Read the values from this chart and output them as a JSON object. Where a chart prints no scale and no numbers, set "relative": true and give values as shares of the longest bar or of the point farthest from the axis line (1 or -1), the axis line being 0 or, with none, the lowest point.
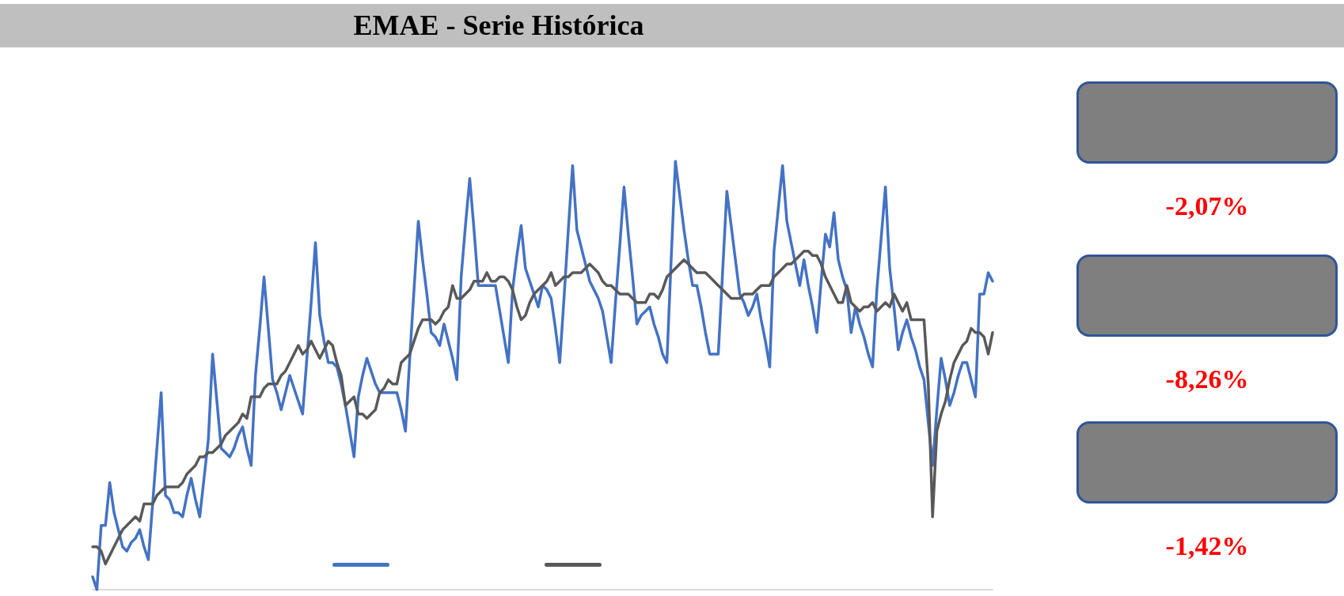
{
  "chart_data": {
    "type": "line",
    "title": "EMAE - Serie Histórica",
    "relative": true,
    "grid": false,
    "marker": "none",
    "annotations": [
      "-2,07%",
      "-8,26%",
      "-1,42%"
    ],
    "categories": [
      null,
      null,
      null,
      null,
      null,
      null,
      null,
      null,
      null,
      null,
      null,
      null,
      null,
      null,
      null,
      null,
      null,
      null,
      null,
      null,
      null,
      null,
      null,
      null,
      null,
      null,
      null,
      null,
      null,
      null,
      null,
      null,
      null,
      null,
      null,
      null,
      null,
      null,
      null,
      null,
      null,
      null,
      null,
      null,
      null,
      null,
      null,
      null,
      null,
      null,
      null,
      null,
      null,
      null,
      null,
      null,
      null,
      null,
      null,
      null,
      null,
      null,
      null,
      null,
      null,
      null,
      null,
      null,
      null,
      null,
      null,
      null,
      null,
      null,
      null,
      null,
      null,
      null,
      null,
      null,
      null,
      null,
      null,
      null,
      null,
      null,
      null,
      null,
      null,
      null,
      null,
      null,
      null,
      null,
      null,
      null,
      null,
      null,
      null,
      null,
      null,
      null,
      null,
      null,
      null,
      null,
      null,
      null,
      null,
      null,
      null,
      null,
      null,
      null,
      null,
      null,
      null,
      null,
      null,
      null,
      null,
      null,
      null,
      null,
      null,
      null,
      null,
      null,
      null,
      null,
      null,
      null,
      null,
      null,
      null,
      null,
      null,
      null,
      null,
      null,
      null,
      null,
      null,
      null,
      null,
      null,
      null,
      null,
      null,
      null,
      null,
      null,
      null,
      null,
      null,
      null,
      null,
      null,
      null,
      null,
      null,
      null,
      null,
      null,
      null,
      null,
      null,
      null,
      null,
      null,
      null,
      null,
      null,
      null,
      null,
      null,
      null,
      null,
      null,
      null,
      null,
      null,
      null,
      null,
      null,
      null,
      null,
      null,
      null,
      null,
      null,
      null,
      null,
      null,
      null,
      null,
      null,
      null,
      null,
      null,
      null,
      null,
      null,
      null,
      null,
      null,
      null,
      null,
      null,
      null,
      null
    ],
    "series": [
      {
        "color": "#4472c4",
        "values": [
          0.03,
          0.0,
          0.15,
          0.15,
          0.25,
          0.18,
          0.14,
          0.1,
          0.09,
          0.11,
          0.12,
          0.14,
          0.1,
          0.07,
          0.2,
          0.33,
          0.46,
          0.22,
          0.21,
          0.18,
          0.18,
          0.17,
          0.22,
          0.26,
          0.21,
          0.17,
          0.26,
          0.35,
          0.55,
          0.44,
          0.33,
          0.32,
          0.31,
          0.33,
          0.36,
          0.38,
          0.33,
          0.29,
          0.5,
          0.61,
          0.73,
          0.61,
          0.49,
          0.46,
          0.42,
          0.46,
          0.5,
          0.47,
          0.44,
          0.41,
          0.54,
          0.67,
          0.81,
          0.64,
          0.58,
          0.53,
          0.53,
          0.52,
          0.48,
          0.43,
          0.37,
          0.31,
          0.45,
          0.5,
          0.54,
          0.51,
          0.48,
          0.46,
          0.46,
          0.46,
          0.46,
          0.46,
          0.42,
          0.37,
          0.54,
          0.7,
          0.86,
          0.77,
          0.69,
          0.6,
          0.59,
          0.57,
          0.62,
          0.58,
          0.54,
          0.49,
          0.73,
          0.85,
          0.96,
          0.84,
          0.71,
          0.71,
          0.71,
          0.71,
          0.71,
          0.65,
          0.59,
          0.53,
          0.7,
          0.78,
          0.85,
          0.75,
          0.72,
          0.69,
          0.66,
          0.71,
          0.7,
          0.68,
          0.61,
          0.53,
          0.68,
          0.84,
          0.99,
          0.84,
          0.8,
          0.76,
          0.72,
          0.7,
          0.68,
          0.65,
          0.59,
          0.53,
          0.67,
          0.8,
          0.94,
          0.83,
          0.73,
          0.62,
          0.64,
          0.65,
          0.66,
          0.62,
          0.59,
          0.55,
          0.53,
          0.77,
          1.0,
          0.92,
          0.84,
          0.77,
          0.71,
          0.71,
          0.66,
          0.6,
          0.55,
          0.55,
          0.55,
          0.74,
          0.93,
          0.85,
          0.77,
          0.69,
          0.67,
          0.64,
          0.66,
          0.69,
          0.63,
          0.58,
          0.52,
          0.79,
          0.89,
          0.99,
          0.86,
          0.81,
          0.76,
          0.71,
          0.77,
          0.71,
          0.66,
          0.6,
          0.72,
          0.83,
          0.8,
          0.88,
          0.77,
          0.73,
          0.7,
          0.6,
          0.66,
          0.62,
          0.59,
          0.55,
          0.52,
          0.7,
          0.82,
          0.94,
          0.75,
          0.66,
          0.56,
          0.6,
          0.63,
          0.59,
          0.56,
          0.52,
          0.49,
          0.39,
          0.29,
          0.42,
          0.54,
          0.49,
          0.43,
          0.46,
          0.5,
          0.53,
          0.53,
          0.49,
          0.45,
          0.69,
          0.69,
          0.74,
          0.72
        ]
      },
      {
        "color": "#595959",
        "values": [
          0.1,
          0.1,
          0.09,
          0.06,
          0.08,
          0.1,
          0.12,
          0.14,
          0.15,
          0.16,
          0.17,
          0.16,
          0.2,
          0.2,
          0.2,
          0.22,
          0.23,
          0.24,
          0.24,
          0.24,
          0.24,
          0.25,
          0.27,
          0.28,
          0.29,
          0.31,
          0.31,
          0.32,
          0.32,
          0.33,
          0.34,
          0.36,
          0.37,
          0.38,
          0.39,
          0.41,
          0.4,
          0.45,
          0.45,
          0.45,
          0.47,
          0.48,
          0.48,
          0.48,
          0.5,
          0.51,
          0.53,
          0.55,
          0.57,
          0.55,
          0.56,
          0.58,
          0.56,
          0.54,
          0.56,
          0.58,
          0.57,
          0.53,
          0.5,
          0.43,
          0.44,
          0.45,
          0.41,
          0.41,
          0.4,
          0.41,
          0.42,
          0.46,
          0.47,
          0.49,
          0.48,
          0.48,
          0.53,
          0.54,
          0.55,
          0.58,
          0.61,
          0.63,
          0.63,
          0.63,
          0.62,
          0.63,
          0.65,
          0.66,
          0.71,
          0.68,
          0.68,
          0.69,
          0.7,
          0.72,
          0.72,
          0.72,
          0.74,
          0.72,
          0.72,
          0.73,
          0.73,
          0.72,
          0.7,
          0.66,
          0.63,
          0.64,
          0.67,
          0.69,
          0.7,
          0.71,
          0.72,
          0.74,
          0.71,
          0.72,
          0.73,
          0.73,
          0.74,
          0.74,
          0.74,
          0.75,
          0.76,
          0.75,
          0.74,
          0.72,
          0.71,
          0.71,
          0.7,
          0.69,
          0.69,
          0.69,
          0.68,
          0.67,
          0.67,
          0.67,
          0.69,
          0.69,
          0.68,
          0.7,
          0.73,
          0.74,
          0.75,
          0.76,
          0.77,
          0.76,
          0.75,
          0.74,
          0.74,
          0.74,
          0.73,
          0.72,
          0.71,
          0.7,
          0.69,
          0.68,
          0.68,
          0.68,
          0.69,
          0.69,
          0.69,
          0.7,
          0.71,
          0.71,
          0.71,
          0.73,
          0.74,
          0.75,
          0.76,
          0.76,
          0.77,
          0.78,
          0.79,
          0.79,
          0.78,
          0.78,
          0.76,
          0.73,
          0.71,
          0.69,
          0.67,
          0.67,
          0.71,
          0.67,
          0.66,
          0.65,
          0.66,
          0.66,
          0.67,
          0.65,
          0.66,
          0.67,
          0.66,
          0.69,
          0.67,
          0.65,
          0.67,
          0.63,
          0.63,
          0.63,
          0.63,
          0.48,
          0.17,
          0.37,
          0.41,
          0.44,
          0.49,
          0.53,
          0.55,
          0.57,
          0.58,
          0.61,
          0.6,
          0.6,
          0.59,
          0.55,
          0.6
        ]
      }
    ]
  }
}
